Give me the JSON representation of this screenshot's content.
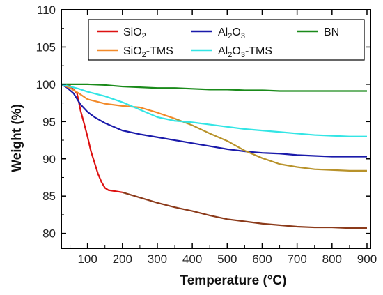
{
  "chart_data": {
    "type": "line",
    "xlabel": "Temperature (°C)",
    "ylabel": "Weight (%)",
    "xlim": [
      25,
      910
    ],
    "ylim": [
      78,
      110
    ],
    "x_ticks": [
      100,
      200,
      300,
      400,
      500,
      600,
      700,
      800,
      900
    ],
    "y_ticks": [
      80,
      85,
      90,
      95,
      100,
      105,
      110
    ],
    "grid": false,
    "legend_position": "top",
    "series": [
      {
        "key": "sio2",
        "legend_parts": [
          [
            "SiO",
            "normal"
          ],
          [
            "2",
            "sub"
          ]
        ],
        "color": "#dd1111",
        "color_tail": "#8b3a1a",
        "x": [
          25,
          50,
          70,
          80,
          90,
          100,
          110,
          120,
          130,
          140,
          150,
          160,
          200,
          250,
          300,
          350,
          400,
          450,
          500,
          550,
          600,
          650,
          700,
          750,
          800,
          850,
          900
        ],
        "y": [
          100,
          99.8,
          98.8,
          96.5,
          94.8,
          93,
          91,
          89.5,
          88,
          86.9,
          86.1,
          85.8,
          85.5,
          84.8,
          84.1,
          83.5,
          83,
          82.4,
          81.9,
          81.6,
          81.3,
          81.1,
          80.9,
          80.8,
          80.8,
          80.7,
          80.7
        ]
      },
      {
        "key": "al2o3",
        "legend_parts": [
          [
            "Al",
            "normal"
          ],
          [
            "2",
            "sub"
          ],
          [
            "O",
            "normal"
          ],
          [
            "3",
            "sub"
          ]
        ],
        "color": "#1a1aaa",
        "x": [
          25,
          40,
          60,
          80,
          100,
          120,
          150,
          200,
          250,
          300,
          350,
          400,
          450,
          500,
          550,
          600,
          650,
          700,
          750,
          800,
          850,
          900
        ],
        "y": [
          100,
          99.6,
          98.8,
          97.3,
          96.3,
          95.6,
          94.8,
          93.8,
          93.3,
          92.9,
          92.5,
          92.1,
          91.7,
          91.3,
          91,
          90.8,
          90.7,
          90.5,
          90.4,
          90.3,
          90.3,
          90.3
        ]
      },
      {
        "key": "bn",
        "legend_parts": [
          [
            "BN",
            "normal"
          ]
        ],
        "color": "#1a8a1a",
        "x": [
          25,
          100,
          150,
          200,
          250,
          300,
          350,
          400,
          450,
          500,
          550,
          600,
          650,
          700,
          750,
          800,
          850,
          900
        ],
        "y": [
          100,
          100,
          99.9,
          99.7,
          99.6,
          99.5,
          99.5,
          99.4,
          99.3,
          99.3,
          99.2,
          99.2,
          99.1,
          99.1,
          99.1,
          99.1,
          99.1,
          99.1
        ]
      },
      {
        "key": "sio2_tms",
        "legend_parts": [
          [
            "SiO",
            "normal"
          ],
          [
            "2",
            "sub"
          ],
          [
            "-TMS",
            "normal"
          ]
        ],
        "color": "#f28a2a",
        "color_tail": "#b8922a",
        "x": [
          25,
          50,
          75,
          100,
          125,
          150,
          200,
          250,
          300,
          350,
          400,
          450,
          500,
          550,
          600,
          650,
          700,
          750,
          800,
          850,
          900
        ],
        "y": [
          100,
          99.5,
          98.8,
          98,
          97.7,
          97.4,
          97.1,
          96.9,
          96.2,
          95.4,
          94.5,
          93.4,
          92.4,
          91.1,
          90.1,
          89.3,
          88.9,
          88.6,
          88.5,
          88.4,
          88.4
        ]
      },
      {
        "key": "al2o3_tms",
        "legend_parts": [
          [
            "Al",
            "normal"
          ],
          [
            "2",
            "sub"
          ],
          [
            "O",
            "normal"
          ],
          [
            "3",
            "sub"
          ],
          [
            "-TMS",
            "normal"
          ]
        ],
        "color": "#33e5e5",
        "x": [
          25,
          50,
          75,
          100,
          150,
          200,
          250,
          300,
          350,
          400,
          450,
          500,
          550,
          600,
          650,
          700,
          750,
          800,
          850,
          900
        ],
        "y": [
          100,
          99.7,
          99.4,
          99,
          98.4,
          97.6,
          96.6,
          95.6,
          95.1,
          94.9,
          94.6,
          94.3,
          94,
          93.8,
          93.6,
          93.4,
          93.2,
          93.1,
          93,
          93
        ]
      }
    ],
    "legend_order": [
      "sio2",
      "al2o3",
      "bn",
      "sio2_tms",
      "al2o3_tms"
    ]
  }
}
